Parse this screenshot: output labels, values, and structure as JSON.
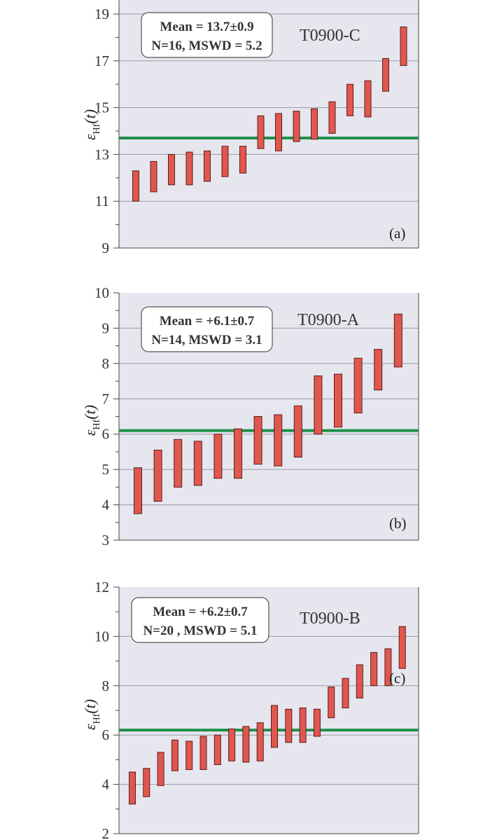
{
  "colors": {
    "plot_background": "#e6e6ef",
    "grid": "#9a9aa6",
    "bar_fill": "#e0574f",
    "bar_stroke": "#5a1d1a",
    "mean_line": "#1f8f4a"
  },
  "chart_data": [
    {
      "type": "bar",
      "panel": "(a)",
      "sample": "T0900-C",
      "ylabel": "εHf(t)",
      "ylim": [
        9,
        19.6
      ],
      "yticks": [
        9,
        11,
        13,
        15,
        17,
        19
      ],
      "mean": 13.7,
      "stats_line1": "Mean = 13.7±0.9",
      "stats_line2": "N=16, MSWD = 5.2",
      "grid": true,
      "intervals": [
        [
          11.0,
          12.3
        ],
        [
          11.4,
          12.7
        ],
        [
          11.7,
          13.0
        ],
        [
          11.7,
          13.1
        ],
        [
          11.85,
          13.15
        ],
        [
          12.05,
          13.35
        ],
        [
          12.2,
          13.35
        ],
        [
          13.25,
          14.65
        ],
        [
          13.15,
          14.75
        ],
        [
          13.55,
          14.85
        ],
        [
          13.65,
          14.95
        ],
        [
          13.9,
          15.25
        ],
        [
          14.65,
          16.0
        ],
        [
          14.6,
          16.15
        ],
        [
          15.7,
          17.1
        ],
        [
          16.8,
          18.45
        ]
      ]
    },
    {
      "type": "bar",
      "panel": "(b)",
      "sample": "T0900-A",
      "ylabel": "εHf(t)",
      "ylim": [
        3,
        10
      ],
      "yticks": [
        3,
        4,
        5,
        6,
        7,
        8,
        9,
        10
      ],
      "mean": 6.1,
      "stats_line1": "Mean = +6.1±0.7",
      "stats_line2": "N=14, MSWD = 3.1",
      "grid": true,
      "intervals": [
        [
          3.75,
          5.05
        ],
        [
          4.1,
          5.55
        ],
        [
          4.5,
          5.85
        ],
        [
          4.55,
          5.8
        ],
        [
          4.75,
          6.0
        ],
        [
          4.75,
          6.15
        ],
        [
          5.15,
          6.5
        ],
        [
          5.1,
          6.55
        ],
        [
          5.35,
          6.8
        ],
        [
          6.0,
          7.65
        ],
        [
          6.2,
          7.7
        ],
        [
          6.6,
          8.15
        ],
        [
          7.25,
          8.4
        ],
        [
          7.9,
          9.4
        ]
      ]
    },
    {
      "type": "bar",
      "panel": "(c)",
      "sample": "T0900-B",
      "ylabel": "εHf(t)",
      "ylim": [
        2,
        12
      ],
      "yticks": [
        2,
        4,
        6,
        8,
        10,
        12
      ],
      "mean": 6.2,
      "stats_line1": "Mean = +6.2±0.7",
      "stats_line2": "N=20 , MSWD = 5.1",
      "grid": true,
      "intervals": [
        [
          3.2,
          4.5
        ],
        [
          3.5,
          4.65
        ],
        [
          3.95,
          5.3
        ],
        [
          4.55,
          5.8
        ],
        [
          4.6,
          5.75
        ],
        [
          4.6,
          5.95
        ],
        [
          4.8,
          6.0
        ],
        [
          4.95,
          6.25
        ],
        [
          4.9,
          6.35
        ],
        [
          4.95,
          6.5
        ],
        [
          5.5,
          7.2
        ],
        [
          5.7,
          7.05
        ],
        [
          5.7,
          7.1
        ],
        [
          5.95,
          7.05
        ],
        [
          6.7,
          7.95
        ],
        [
          7.1,
          8.3
        ],
        [
          7.5,
          8.85
        ],
        [
          8.0,
          9.35
        ],
        [
          8.0,
          9.5
        ],
        [
          8.7,
          10.4
        ]
      ]
    }
  ]
}
